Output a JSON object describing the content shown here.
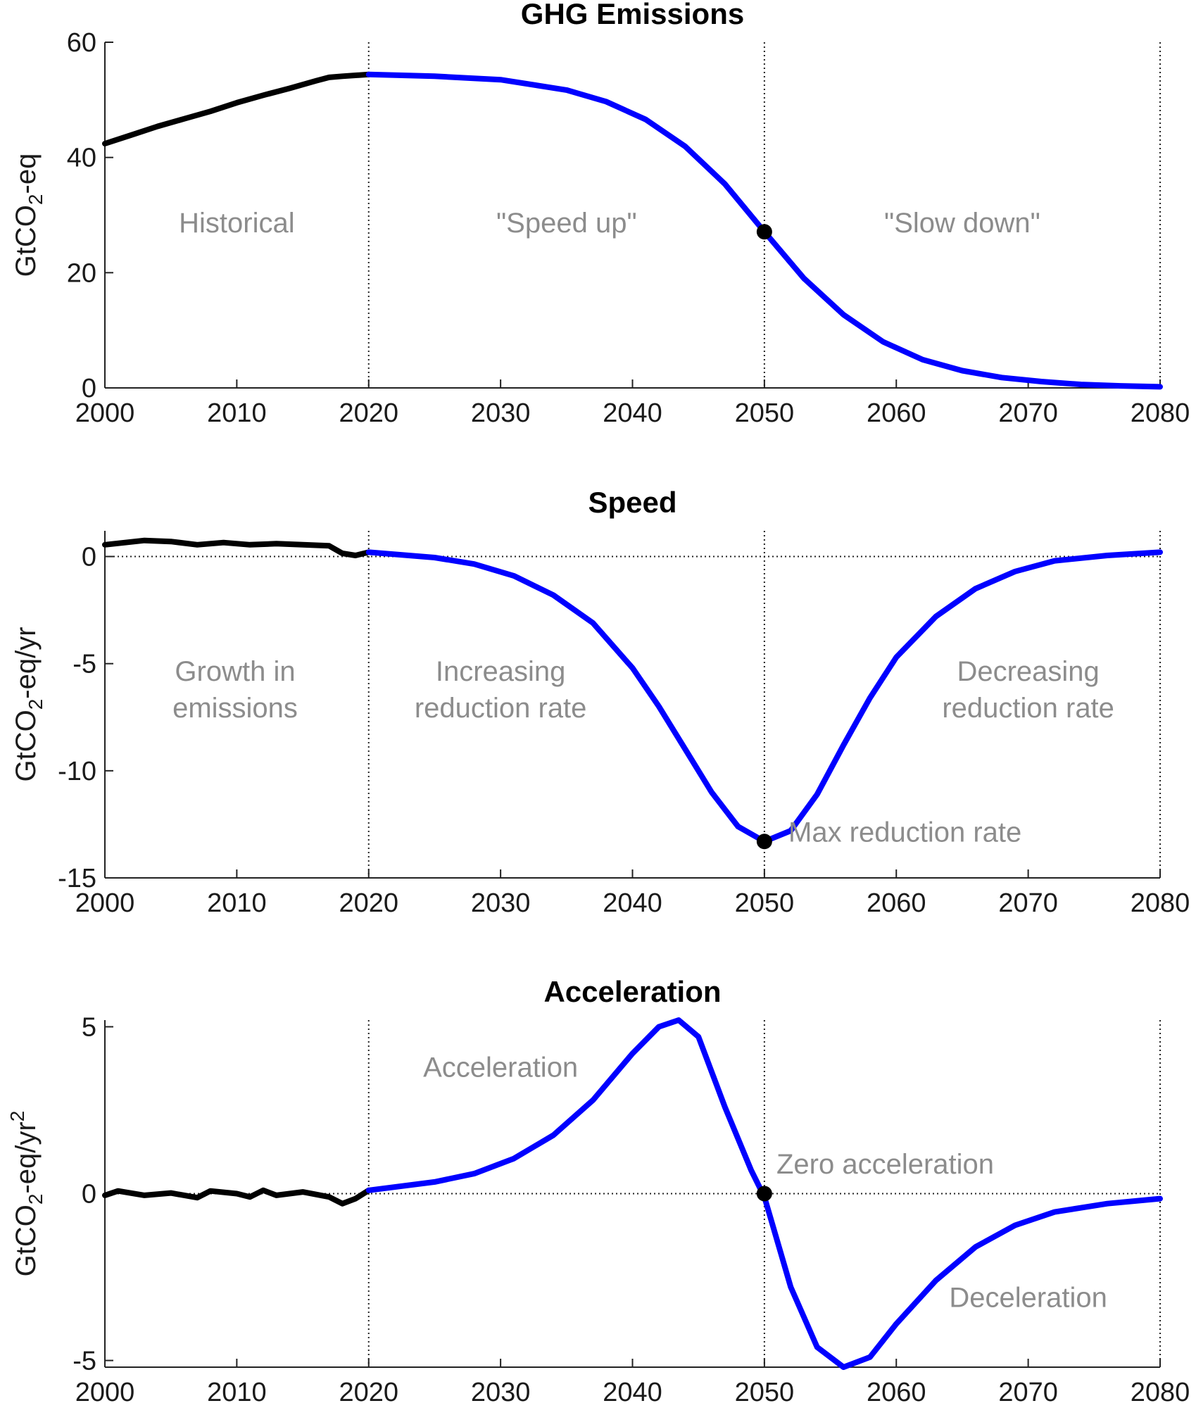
{
  "chart_data": [
    {
      "type": "line",
      "title": "GHG Emissions",
      "ylabel_main": "GtCO",
      "ylabel_sub": "2",
      "ylabel_rest": "-eq",
      "ylabel_sup": "",
      "xlim": [
        2000,
        2080
      ],
      "ylim": [
        0,
        60
      ],
      "xticks": [
        "2000",
        "2010",
        "2020",
        "2030",
        "2040",
        "2050",
        "2060",
        "2070",
        "2080"
      ],
      "yticks": [
        "0",
        "20",
        "40",
        "60"
      ],
      "ytick_values": [
        0,
        20,
        40,
        60
      ],
      "grid": false,
      "zero_line": false,
      "vlines": [
        2020,
        2050,
        2080
      ],
      "series": [
        {
          "color": "#000000",
          "x": [
            2000,
            2002,
            2004,
            2006,
            2008,
            2010,
            2012,
            2014,
            2016,
            2017,
            2018,
            2020
          ],
          "y": [
            42.4,
            43.9,
            45.4,
            46.7,
            48.0,
            49.5,
            50.8,
            52.0,
            53.3,
            53.9,
            54.1,
            54.4
          ]
        },
        {
          "color": "#0000ff",
          "x": [
            2020,
            2025,
            2030,
            2035,
            2038,
            2041,
            2044,
            2047,
            2050,
            2053,
            2056,
            2059,
            2062,
            2065,
            2068,
            2071,
            2074,
            2077,
            2080
          ],
          "y": [
            54.4,
            54.1,
            53.5,
            51.7,
            49.7,
            46.6,
            41.9,
            35.4,
            27.1,
            19.0,
            12.7,
            8.0,
            4.9,
            3.0,
            1.8,
            1.1,
            0.6,
            0.35,
            0.2
          ]
        }
      ],
      "markers": [
        {
          "x": 2050,
          "y": 27.1
        }
      ],
      "annotations": [
        {
          "lines": [
            "Historical"
          ],
          "x": 2010,
          "y": 27
        },
        {
          "lines": [
            "\"Speed up\""
          ],
          "x": 2035,
          "y": 27
        },
        {
          "lines": [
            "\"Slow down\""
          ],
          "x": 2065,
          "y": 27
        }
      ]
    },
    {
      "type": "line",
      "title": "Speed",
      "ylabel_main": "GtCO",
      "ylabel_sub": "2",
      "ylabel_rest": "-eq/yr",
      "ylabel_sup": "",
      "xlim": [
        2000,
        2080
      ],
      "ylim": [
        -15,
        1.2
      ],
      "xticks": [
        "2000",
        "2010",
        "2020",
        "2030",
        "2040",
        "2050",
        "2060",
        "2070",
        "2080"
      ],
      "yticks": [
        "-15",
        "-10",
        "-5",
        "0"
      ],
      "ytick_values": [
        -15,
        -10,
        -5,
        0
      ],
      "grid": false,
      "zero_line": true,
      "vlines": [
        2020,
        2050,
        2080
      ],
      "series": [
        {
          "color": "#000000",
          "x": [
            2000,
            2003,
            2005,
            2007,
            2009,
            2011,
            2013,
            2015,
            2017,
            2018,
            2019,
            2020
          ],
          "y": [
            0.55,
            0.75,
            0.7,
            0.55,
            0.65,
            0.55,
            0.6,
            0.55,
            0.5,
            0.15,
            0.05,
            0.2
          ]
        },
        {
          "color": "#0000ff",
          "x": [
            2020,
            2025,
            2028,
            2031,
            2034,
            2037,
            2040,
            2042,
            2044,
            2046,
            2048,
            2050,
            2052,
            2054,
            2056,
            2058,
            2060,
            2063,
            2066,
            2069,
            2072,
            2076,
            2080
          ],
          "y": [
            0.2,
            -0.05,
            -0.35,
            -0.9,
            -1.8,
            -3.1,
            -5.2,
            -7.0,
            -9.0,
            -11.0,
            -12.6,
            -13.3,
            -12.8,
            -11.1,
            -8.8,
            -6.6,
            -4.7,
            -2.8,
            -1.5,
            -0.7,
            -0.2,
            0.05,
            0.2
          ]
        }
      ],
      "markers": [
        {
          "x": 2050,
          "y": -13.3
        }
      ],
      "annotations": [
        {
          "lines": [
            "Growth in",
            "emissions"
          ],
          "x": 2000,
          "y": -5.8
        },
        {
          "lines": [
            "Increasing",
            "reduction rate"
          ],
          "x": 2030,
          "y": -5.8
        },
        {
          "lines": [
            "Decreasing",
            "reduction rate"
          ],
          "x": 2070,
          "y": -5.8
        },
        {
          "lines": [
            "Max reduction rate"
          ],
          "x": 2062,
          "y": -13.3
        }
      ]
    },
    {
      "type": "line",
      "title": "Acceleration",
      "ylabel_main": "GtCO",
      "ylabel_sub": "2",
      "ylabel_rest": "-eq/yr",
      "ylabel_sup": "2",
      "xlim": [
        2000,
        2080
      ],
      "ylim": [
        -5.2,
        5.2
      ],
      "xticks": [
        "2000",
        "2010",
        "2020",
        "2030",
        "2040",
        "2050",
        "2060",
        "2070",
        "2080"
      ],
      "yticks": [
        "-5",
        "0",
        "5"
      ],
      "ytick_values": [
        -5,
        0,
        5
      ],
      "grid": false,
      "zero_line": true,
      "vlines": [
        2020,
        2050,
        2080
      ],
      "series": [
        {
          "color": "#000000",
          "x": [
            2000,
            2001,
            2003,
            2005,
            2007,
            2008,
            2010,
            2011,
            2012,
            2013,
            2015,
            2017,
            2018,
            2019,
            2020
          ],
          "y": [
            -0.05,
            0.08,
            -0.05,
            0.02,
            -0.12,
            0.08,
            0.0,
            -0.1,
            0.1,
            -0.05,
            0.05,
            -0.1,
            -0.3,
            -0.15,
            0.1
          ]
        },
        {
          "color": "#0000ff",
          "x": [
            2020,
            2025,
            2028,
            2031,
            2034,
            2037,
            2040,
            2042,
            2043.5,
            2045,
            2047,
            2049,
            2050,
            2052,
            2054,
            2056,
            2058,
            2060,
            2063,
            2066,
            2069,
            2072,
            2076,
            2080
          ],
          "y": [
            0.1,
            0.35,
            0.6,
            1.05,
            1.75,
            2.8,
            4.2,
            5.0,
            5.2,
            4.7,
            2.6,
            0.7,
            -0.1,
            -2.8,
            -4.6,
            -5.2,
            -4.9,
            -3.9,
            -2.6,
            -1.6,
            -0.95,
            -0.55,
            -0.3,
            -0.15
          ]
        }
      ],
      "markers": [
        {
          "x": 2050,
          "y": 0.0
        }
      ],
      "annotations": [
        {
          "lines": [
            "Acceleration"
          ],
          "x": 2030,
          "y": 3.5
        },
        {
          "lines": [
            "Zero acceleration"
          ],
          "x": 2061,
          "y": 0.6
        },
        {
          "lines": [
            "Deceleration"
          ],
          "x": 2070,
          "y": -3.4
        }
      ]
    }
  ]
}
